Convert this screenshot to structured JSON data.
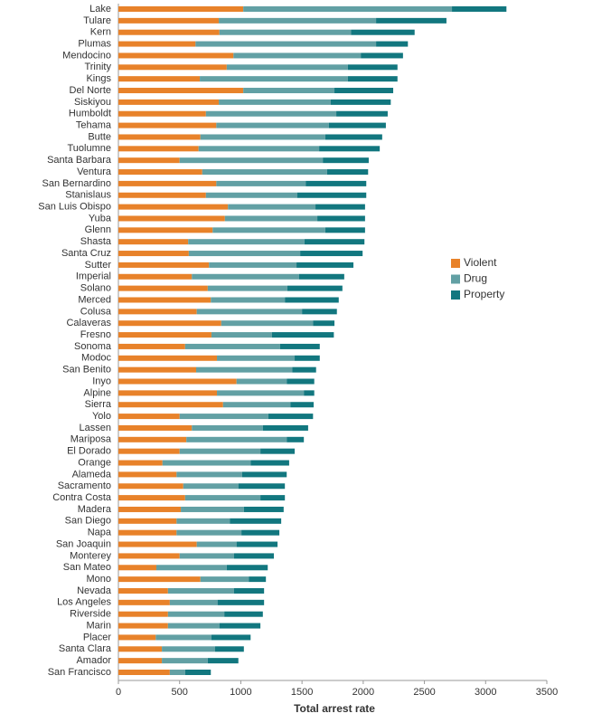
{
  "chart_data": {
    "type": "bar",
    "orientation": "horizontal",
    "stacked": true,
    "xlabel": "Total arrest rate",
    "categories": [
      "Lake",
      "Tulare",
      "Kern",
      "Plumas",
      "Mendocino",
      "Trinity",
      "Kings",
      "Del Norte",
      "Siskiyou",
      "Humboldt",
      "Tehama",
      "Butte",
      "Tuolumne",
      "Santa Barbara",
      "Ventura",
      "San Bernardino",
      "Stanislaus",
      "San Luis Obispo",
      "Yuba",
      "Glenn",
      "Shasta",
      "Santa Cruz",
      "Sutter",
      "Imperial",
      "Solano",
      "Merced",
      "Colusa",
      "Calaveras",
      "Fresno",
      "Sonoma",
      "Modoc",
      "San Benito",
      "Inyo",
      "Alpine",
      "Sierra",
      "Yolo",
      "Lassen",
      "Mariposa",
      "El Dorado",
      "Orange",
      "Alameda",
      "Sacramento",
      "Contra Costa",
      "Madera",
      "San Diego",
      "Napa",
      "San Joaquin",
      "Monterey",
      "San Mateo",
      "Mono",
      "Nevada",
      "Los Angeles",
      "Riverside",
      "Marin",
      "Placer",
      "Santa Clara",
      "Amador",
      "San Francisco"
    ],
    "series": [
      {
        "name": "Violent",
        "color": "#e8822a",
        "values": [
          1020,
          820,
          825,
          630,
          940,
          885,
          665,
          1020,
          820,
          715,
          800,
          670,
          655,
          500,
          685,
          800,
          715,
          895,
          870,
          770,
          570,
          575,
          740,
          600,
          730,
          755,
          640,
          840,
          760,
          545,
          805,
          635,
          965,
          805,
          855,
          500,
          600,
          555,
          500,
          360,
          475,
          530,
          545,
          510,
          475,
          475,
          640,
          500,
          310,
          670,
          405,
          420,
          405,
          405,
          305,
          355,
          355,
          420
        ]
      },
      {
        "name": "Drug",
        "color": "#62a0a4",
        "values": [
          1705,
          1285,
          1075,
          1475,
          1040,
          990,
          1210,
          745,
          915,
          1065,
          920,
          1020,
          985,
          1170,
          1020,
          730,
          745,
          715,
          755,
          920,
          950,
          910,
          715,
          875,
          650,
          605,
          860,
          750,
          495,
          775,
          635,
          785,
          410,
          710,
          550,
          725,
          580,
          820,
          660,
          720,
          535,
          450,
          615,
          515,
          435,
          530,
          325,
          445,
          575,
          395,
          540,
          390,
          460,
          420,
          455,
          435,
          375,
          125
        ]
      },
      {
        "name": "Property",
        "color": "#12777f",
        "values": [
          445,
          575,
          520,
          260,
          345,
          405,
          405,
          480,
          490,
          420,
          465,
          465,
          495,
          375,
          335,
          495,
          565,
          405,
          390,
          325,
          490,
          510,
          465,
          370,
          450,
          440,
          285,
          175,
          505,
          325,
          205,
          195,
          225,
          85,
          190,
          365,
          370,
          140,
          280,
          315,
          365,
          380,
          200,
          325,
          420,
          310,
          335,
          325,
          335,
          140,
          245,
          380,
          315,
          335,
          320,
          235,
          250,
          210
        ]
      }
    ],
    "xlim": [
      0,
      3500
    ],
    "xticks": [
      0,
      500,
      1000,
      1500,
      2000,
      2500,
      3000,
      3500
    ],
    "legend": "right"
  }
}
